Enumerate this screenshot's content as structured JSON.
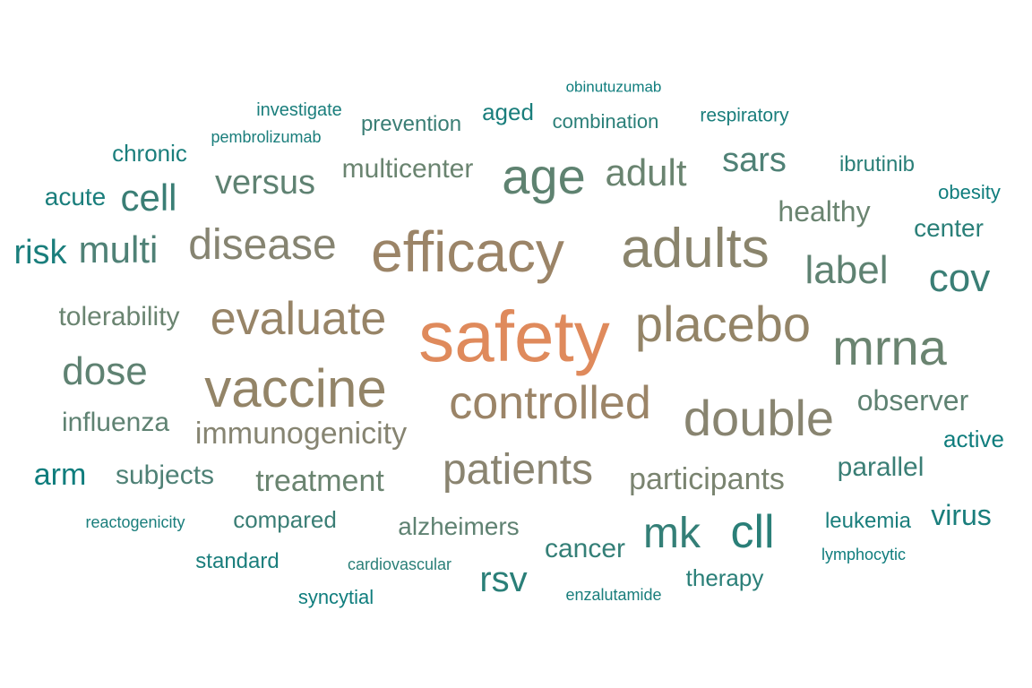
{
  "words": [
    {
      "text": "safety",
      "color": "#df8a5c"
    },
    {
      "text": "efficacy",
      "color": "#9b8467"
    },
    {
      "text": "adults",
      "color": "#8a846c"
    },
    {
      "text": "vaccine",
      "color": "#938467"
    },
    {
      "text": "placebo",
      "color": "#938467"
    },
    {
      "text": "mrna",
      "color": "#6a8470"
    },
    {
      "text": "evaluate",
      "color": "#978467"
    },
    {
      "text": "double",
      "color": "#888470"
    },
    {
      "text": "controlled",
      "color": "#9b8467"
    },
    {
      "text": "disease",
      "color": "#868471"
    },
    {
      "text": "age",
      "color": "#5e8270"
    },
    {
      "text": "patients",
      "color": "#8a8470"
    },
    {
      "text": "cll",
      "color": "#2a7f78"
    },
    {
      "text": "mk",
      "color": "#347f77"
    },
    {
      "text": "cov",
      "color": "#3a7e75"
    },
    {
      "text": "label",
      "color": "#5f8272"
    },
    {
      "text": "adult",
      "color": "#6a8470"
    },
    {
      "text": "dose",
      "color": "#5f8272"
    },
    {
      "text": "multi",
      "color": "#4f8176"
    },
    {
      "text": "cell",
      "color": "#3a7e75"
    },
    {
      "text": "rsv",
      "color": "#2a7f78"
    },
    {
      "text": "versus",
      "color": "#5f8272"
    },
    {
      "text": "sars",
      "color": "#4f8176"
    },
    {
      "text": "immunogenicity",
      "color": "#868471"
    },
    {
      "text": "treatment",
      "color": "#6a8470"
    },
    {
      "text": "participants",
      "color": "#7a8470"
    },
    {
      "text": "risk",
      "color": "#1a7e7c"
    },
    {
      "text": "arm",
      "color": "#0f7d7d"
    },
    {
      "text": "observer",
      "color": "#5f8272"
    },
    {
      "text": "multicenter",
      "color": "#6a8470"
    },
    {
      "text": "healthy",
      "color": "#6a8470"
    },
    {
      "text": "tolerability",
      "color": "#6a8470"
    },
    {
      "text": "influenza",
      "color": "#5f8272"
    },
    {
      "text": "subjects",
      "color": "#4f8176"
    },
    {
      "text": "cancer",
      "color": "#347f77"
    },
    {
      "text": "alzheimers",
      "color": "#5f8272"
    },
    {
      "text": "virus",
      "color": "#1a7e7c"
    },
    {
      "text": "parallel",
      "color": "#3a7e75"
    },
    {
      "text": "acute",
      "color": "#1a7e7c"
    },
    {
      "text": "chronic",
      "color": "#1a7e7c"
    },
    {
      "text": "center",
      "color": "#2a7f78"
    },
    {
      "text": "compared",
      "color": "#3a7e75"
    },
    {
      "text": "prevention",
      "color": "#3a7e75"
    },
    {
      "text": "aged",
      "color": "#1a7e7c"
    },
    {
      "text": "therapy",
      "color": "#2a7f78"
    },
    {
      "text": "ibrutinib",
      "color": "#2a7f78"
    },
    {
      "text": "active",
      "color": "#0f7d7d"
    },
    {
      "text": "leukemia",
      "color": "#1a7e7c"
    },
    {
      "text": "standard",
      "color": "#1a7e7c"
    },
    {
      "text": "combination",
      "color": "#2a7f78"
    },
    {
      "text": "obesity",
      "color": "#0f7d7d"
    },
    {
      "text": "respiratory",
      "color": "#1a7e7c"
    },
    {
      "text": "syncytial",
      "color": "#0f7d7d"
    },
    {
      "text": "investigate",
      "color": "#1a7e7c"
    },
    {
      "text": "cardiovascular",
      "color": "#2a7f78"
    },
    {
      "text": "pembrolizumab",
      "color": "#1a7e7c"
    },
    {
      "text": "reactogenicity",
      "color": "#1a7e7c"
    },
    {
      "text": "lymphocytic",
      "color": "#0f7d7d"
    },
    {
      "text": "enzalutamide",
      "color": "#1a7e7c"
    },
    {
      "text": "obinutuzumab",
      "color": "#0f7d7d"
    }
  ]
}
